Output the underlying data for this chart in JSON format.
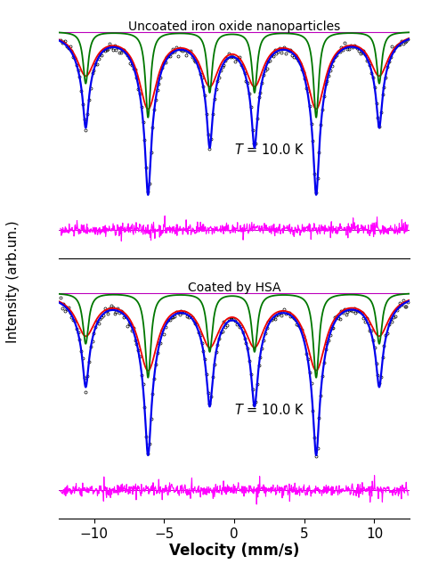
{
  "title_top": "Uncoated iron oxide nanoparticles",
  "title_bottom": "Coated by HSA",
  "temp_label_italic": "$\\it{T}$ = 10.0 K",
  "xlabel": "Velocity (mm/s)",
  "ylabel": "Intensity (arb.un.)",
  "xlim": [
    -12.5,
    12.5
  ],
  "xticks": [
    -10,
    -5,
    0,
    5,
    10
  ],
  "background_color": "#ffffff",
  "centers": [
    -10.6,
    -6.15,
    -1.75,
    1.45,
    5.85,
    10.35
  ],
  "colors": {
    "data": "#000000",
    "fit_blue": "#0000ee",
    "component_red": "#ee0000",
    "component_green": "#007700",
    "residual": "#ff00ff",
    "baseline_purple": "#bb00bb"
  },
  "top_params": {
    "width_red": [
      1.6,
      1.6,
      1.6,
      1.6,
      1.6,
      1.6
    ],
    "depth_red": [
      0.28,
      0.5,
      0.33,
      0.33,
      0.5,
      0.28
    ],
    "width_green": [
      0.45,
      0.45,
      0.45,
      0.45,
      0.45,
      0.45
    ],
    "depth_green": [
      0.35,
      0.58,
      0.41,
      0.41,
      0.58,
      0.35
    ]
  },
  "bottom_params": {
    "width_red": [
      1.7,
      1.7,
      1.7,
      1.7,
      1.7,
      1.7
    ],
    "depth_red": [
      0.26,
      0.48,
      0.31,
      0.31,
      0.48,
      0.26
    ],
    "width_green": [
      0.5,
      0.5,
      0.5,
      0.5,
      0.5,
      0.5
    ],
    "depth_green": [
      0.33,
      0.55,
      0.38,
      0.38,
      0.55,
      0.33
    ]
  },
  "noise_seed": 42,
  "n_data_points": 220,
  "n_residual_points": 800,
  "data_noise": 0.015,
  "residual_noise": 0.012
}
